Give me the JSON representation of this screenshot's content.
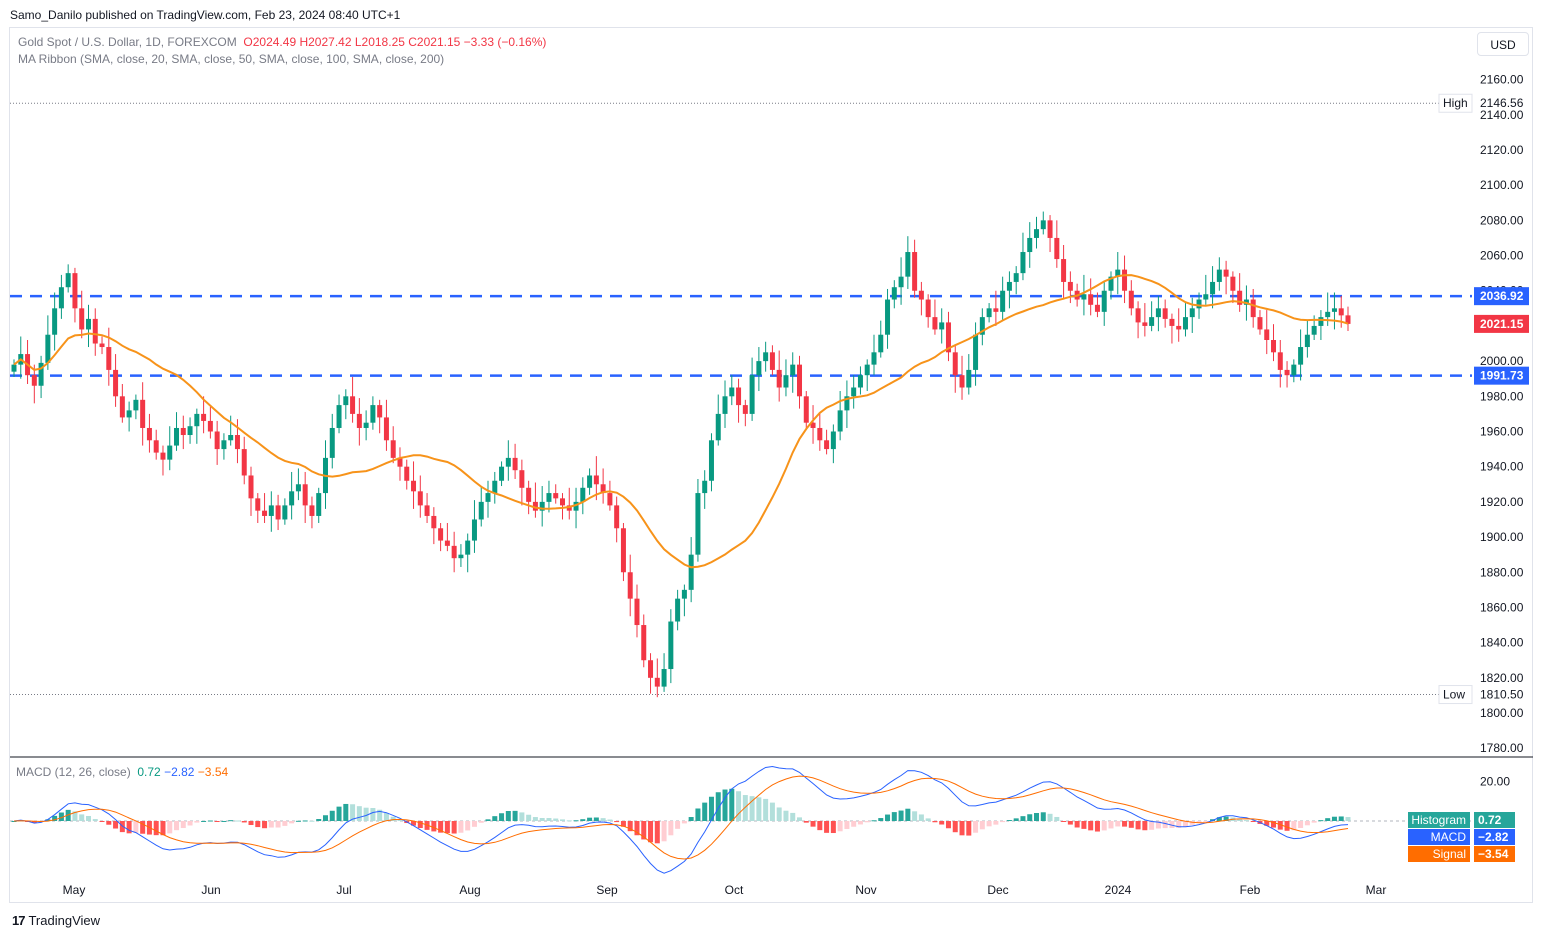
{
  "publisher_line": "Samo_Danilo published on TradingView.com, Feb 23, 2024 08:40 UTC+1",
  "legend": {
    "symbol": "Gold Spot / U.S. Dollar, 1D, FOREXCOM",
    "open": "O2024.49",
    "high": "H2027.42",
    "low": "L2018.25",
    "close": "C2021.15",
    "change": "−3.33 (−0.16%)",
    "indicator": "MA Ribbon (SMA, close, 20, SMA, close, 50, SMA, close, 100, SMA, close, 200)"
  },
  "currency_button": "USD",
  "macd_legend": {
    "label": "MACD (12, 26, close)",
    "hist": "0.72",
    "macd": "−2.82",
    "signal": "−3.54"
  },
  "footer": {
    "brand": "TradingView",
    "logo_glyph": "17"
  },
  "colors": {
    "up": "#089981",
    "down": "#f23645",
    "ma": "#f7931a",
    "level": "#2962ff",
    "macd": "#2962ff",
    "signal": "#ff6d00"
  },
  "chart_data": [
    {
      "type": "candlestick",
      "title": "Gold Spot / U.S. Dollar, 1D, FOREXCOM",
      "ylim": [
        1775,
        2170
      ],
      "y_ticks": [
        "2160.00",
        "2140.00",
        "2120.00",
        "2100.00",
        "2080.00",
        "2060.00",
        "2040.00",
        "2020.00",
        "2000.00",
        "1980.00",
        "1960.00",
        "1940.00",
        "1920.00",
        "1900.00",
        "1880.00",
        "1860.00",
        "1840.00",
        "1820.00",
        "1800.00",
        "1780.00"
      ],
      "x_labels": [
        "May",
        "Jun",
        "Jul",
        "Aug",
        "Sep",
        "Oct",
        "Nov",
        "Dec",
        "2024",
        "Feb",
        "Mar"
      ],
      "levels": {
        "high_label": "High",
        "high": "2146.56",
        "low_label": "Low",
        "low": "1810.50",
        "resistance": "2036.92",
        "last": "2021.15",
        "support": "1991.73"
      },
      "close_series": [
        1998,
        2004,
        1992,
        1986,
        1999,
        2015,
        2030,
        2042,
        2050,
        2030,
        2018,
        2024,
        2010,
        2008,
        1995,
        1980,
        1968,
        1972,
        1978,
        1962,
        1955,
        1948,
        1944,
        1952,
        1962,
        1958,
        1963,
        1970,
        1966,
        1960,
        1950,
        1955,
        1958,
        1950,
        1935,
        1922,
        1915,
        1912,
        1918,
        1910,
        1918,
        1926,
        1930,
        1918,
        1912,
        1925,
        1945,
        1962,
        1975,
        1980,
        1970,
        1962,
        1965,
        1975,
        1968,
        1955,
        1945,
        1940,
        1932,
        1926,
        1918,
        1912,
        1905,
        1898,
        1895,
        1888,
        1890,
        1898,
        1910,
        1920,
        1925,
        1932,
        1940,
        1945,
        1938,
        1928,
        1920,
        1915,
        1920,
        1925,
        1922,
        1918,
        1915,
        1920,
        1928,
        1935,
        1930,
        1925,
        1918,
        1905,
        1880,
        1865,
        1850,
        1830,
        1820,
        1815,
        1825,
        1852,
        1865,
        1870,
        1890,
        1925,
        1932,
        1955,
        1970,
        1980,
        1985,
        1975,
        1970,
        1992,
        2000,
        2005,
        1995,
        1985,
        1992,
        1998,
        1980,
        1965,
        1962,
        1955,
        1950,
        1960,
        1972,
        1980,
        1985,
        1992,
        1998,
        2005,
        2015,
        2035,
        2042,
        2048,
        2062,
        2040,
        2035,
        2025,
        2018,
        2022,
        2005,
        1992,
        1985,
        1995,
        2015,
        2025,
        2030,
        2028,
        2040,
        2045,
        2050,
        2062,
        2070,
        2075,
        2080,
        2070,
        2058,
        2045,
        2040,
        2035,
        2038,
        2032,
        2028,
        2040,
        2048,
        2052,
        2040,
        2030,
        2022,
        2020,
        2025,
        2030,
        2024,
        2020,
        2018,
        2025,
        2030,
        2035,
        2038,
        2045,
        2052,
        2048,
        2040,
        2032,
        2035,
        2025,
        2018,
        2012,
        2005,
        1995,
        1992,
        1998,
        2008,
        2015,
        2020,
        2025,
        2028,
        2030,
        2026,
        2021.15
      ],
      "ma_label": "SMA 20"
    },
    {
      "type": "macd",
      "title": "MACD (12, 26, close)",
      "ylim": [
        -30,
        30
      ],
      "y_ticks": [
        "20.00"
      ],
      "labels": {
        "hist_label": "Histogram",
        "hist": "0.72",
        "macd_label": "MACD",
        "macd": "−2.82",
        "signal_label": "Signal",
        "signal": "−3.54"
      }
    }
  ]
}
